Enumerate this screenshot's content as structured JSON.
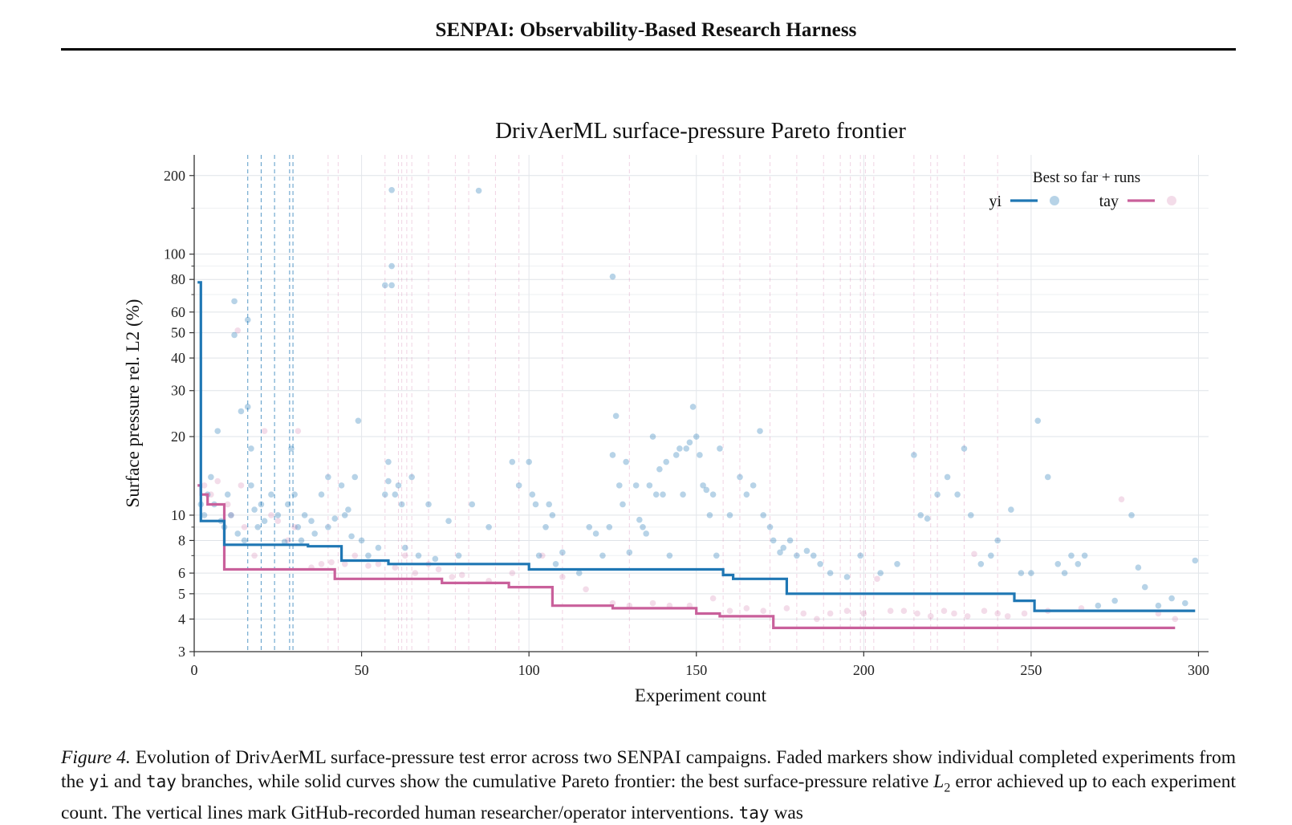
{
  "header": {
    "title": "SENPAI: Observability-Based Research Harness"
  },
  "chart_data": {
    "type": "line",
    "title": "DrivAerML surface-pressure Pareto frontier",
    "xlabel": "Experiment count",
    "ylabel": "Surface pressure rel. L2 (%)",
    "xlim": [
      0,
      303
    ],
    "ylim": [
      3,
      240
    ],
    "yscale": "log",
    "grid": true,
    "xticks": [
      0,
      50,
      100,
      150,
      200,
      250,
      300
    ],
    "xtick_labels": [
      "0",
      "50",
      "100",
      "150",
      "200",
      "250",
      "300"
    ],
    "yticks": [
      3,
      4,
      5,
      6,
      8,
      10,
      20,
      30,
      40,
      50,
      60,
      80,
      100,
      200
    ],
    "ytick_labels": [
      "3",
      "4",
      "5",
      "6",
      "8",
      "10",
      "20",
      "30",
      "40",
      "50",
      "60",
      "80",
      "100",
      "200"
    ],
    "legend": {
      "title": "Best so far + runs",
      "placement": "top-right",
      "entries": [
        "yi",
        "tay"
      ]
    },
    "series": [
      {
        "name": "yi",
        "color": "#1f77b4",
        "frontier": [
          [
            1,
            78
          ],
          [
            2,
            78
          ],
          [
            2,
            9.5
          ],
          [
            9,
            9.5
          ],
          [
            9,
            7.7
          ],
          [
            34,
            7.7
          ],
          [
            34,
            7.6
          ],
          [
            44,
            7.6
          ],
          [
            44,
            6.7
          ],
          [
            58,
            6.7
          ],
          [
            58,
            6.5
          ],
          [
            100,
            6.5
          ],
          [
            100,
            6.2
          ],
          [
            158,
            6.2
          ],
          [
            158,
            5.9
          ],
          [
            161,
            5.9
          ],
          [
            161,
            5.7
          ],
          [
            177,
            5.7
          ],
          [
            177,
            5.0
          ],
          [
            245,
            5.0
          ],
          [
            245,
            4.7
          ],
          [
            251,
            4.7
          ],
          [
            251,
            4.3
          ],
          [
            299,
            4.3
          ]
        ],
        "runs": [
          [
            2,
            11
          ],
          [
            3,
            10
          ],
          [
            4,
            12
          ],
          [
            5,
            14
          ],
          [
            6,
            11
          ],
          [
            7,
            21
          ],
          [
            8,
            9.5
          ],
          [
            9,
            9
          ],
          [
            10,
            12
          ],
          [
            11,
            10
          ],
          [
            12,
            66
          ],
          [
            12,
            49
          ],
          [
            13,
            8.5
          ],
          [
            14,
            25
          ],
          [
            15,
            8
          ],
          [
            16,
            56
          ],
          [
            16,
            26
          ],
          [
            17,
            18
          ],
          [
            17,
            13
          ],
          [
            18,
            10.5
          ],
          [
            19,
            9
          ],
          [
            20,
            11
          ],
          [
            21,
            9.5
          ],
          [
            23,
            12
          ],
          [
            25,
            10
          ],
          [
            27,
            7.9
          ],
          [
            28,
            11
          ],
          [
            29,
            18
          ],
          [
            30,
            12
          ],
          [
            31,
            9
          ],
          [
            32,
            8
          ],
          [
            33,
            10
          ],
          [
            35,
            9.5
          ],
          [
            36,
            8.5
          ],
          [
            38,
            12
          ],
          [
            40,
            9
          ],
          [
            40,
            14
          ],
          [
            42,
            9.7
          ],
          [
            44,
            13
          ],
          [
            45,
            10
          ],
          [
            46,
            10.5
          ],
          [
            47,
            8.3
          ],
          [
            48,
            14
          ],
          [
            49,
            23
          ],
          [
            50,
            8
          ],
          [
            52,
            7
          ],
          [
            55,
            7.5
          ],
          [
            57,
            76
          ],
          [
            57,
            12
          ],
          [
            58,
            16
          ],
          [
            58,
            13.5
          ],
          [
            59,
            176
          ],
          [
            59,
            90
          ],
          [
            59,
            76
          ],
          [
            60,
            12
          ],
          [
            61,
            13
          ],
          [
            62,
            11
          ],
          [
            63,
            7.5
          ],
          [
            65,
            14
          ],
          [
            67,
            7
          ],
          [
            70,
            11
          ],
          [
            72,
            6.8
          ],
          [
            76,
            9.5
          ],
          [
            79,
            7
          ],
          [
            83,
            11
          ],
          [
            85,
            175
          ],
          [
            88,
            9
          ],
          [
            95,
            16
          ],
          [
            97,
            13
          ],
          [
            100,
            16
          ],
          [
            101,
            12
          ],
          [
            102,
            11
          ],
          [
            103,
            7
          ],
          [
            105,
            9
          ],
          [
            106,
            11
          ],
          [
            107,
            10
          ],
          [
            108,
            6.5
          ],
          [
            110,
            7.2
          ],
          [
            115,
            6
          ],
          [
            118,
            9
          ],
          [
            120,
            8.5
          ],
          [
            122,
            7
          ],
          [
            124,
            9
          ],
          [
            125,
            82
          ],
          [
            125,
            17
          ],
          [
            126,
            24
          ],
          [
            127,
            13
          ],
          [
            128,
            11
          ],
          [
            129,
            16
          ],
          [
            130,
            7.2
          ],
          [
            132,
            13
          ],
          [
            133,
            9.6
          ],
          [
            134,
            9
          ],
          [
            135,
            8.5
          ],
          [
            136,
            13
          ],
          [
            137,
            20
          ],
          [
            138,
            12
          ],
          [
            139,
            15
          ],
          [
            140,
            12
          ],
          [
            141,
            16
          ],
          [
            142,
            7
          ],
          [
            144,
            17
          ],
          [
            145,
            18
          ],
          [
            146,
            12
          ],
          [
            147,
            18
          ],
          [
            148,
            19
          ],
          [
            149,
            26
          ],
          [
            150,
            20
          ],
          [
            151,
            17
          ],
          [
            152,
            13
          ],
          [
            153,
            12.5
          ],
          [
            154,
            10
          ],
          [
            155,
            12
          ],
          [
            156,
            7
          ],
          [
            157,
            18
          ],
          [
            160,
            10
          ],
          [
            163,
            14
          ],
          [
            165,
            12
          ],
          [
            167,
            13
          ],
          [
            169,
            21
          ],
          [
            170,
            10
          ],
          [
            172,
            9
          ],
          [
            173,
            8
          ],
          [
            175,
            7.2
          ],
          [
            176,
            7.5
          ],
          [
            178,
            8
          ],
          [
            180,
            7
          ],
          [
            183,
            7.3
          ],
          [
            185,
            7
          ],
          [
            187,
            6.5
          ],
          [
            190,
            6
          ],
          [
            195,
            5.8
          ],
          [
            199,
            7
          ],
          [
            205,
            6
          ],
          [
            210,
            6.5
          ],
          [
            215,
            17
          ],
          [
            217,
            10
          ],
          [
            219,
            9.7
          ],
          [
            222,
            12
          ],
          [
            225,
            14
          ],
          [
            228,
            12
          ],
          [
            230,
            18
          ],
          [
            232,
            10
          ],
          [
            235,
            6.5
          ],
          [
            238,
            7
          ],
          [
            240,
            8
          ],
          [
            244,
            10.5
          ],
          [
            247,
            6
          ],
          [
            250,
            6
          ],
          [
            252,
            23
          ],
          [
            255,
            14
          ],
          [
            258,
            6.5
          ],
          [
            260,
            6
          ],
          [
            262,
            7
          ],
          [
            264,
            6.5
          ],
          [
            266,
            7
          ],
          [
            270,
            4.5
          ],
          [
            275,
            4.7
          ],
          [
            280,
            10
          ],
          [
            282,
            6.3
          ],
          [
            284,
            5.3
          ],
          [
            288,
            4.5
          ],
          [
            292,
            4.8
          ],
          [
            296,
            4.6
          ],
          [
            299,
            6.7
          ]
        ]
      },
      {
        "name": "tay",
        "color": "#c9609b",
        "frontier": [
          [
            1,
            13
          ],
          [
            2,
            13
          ],
          [
            2,
            12
          ],
          [
            4,
            12
          ],
          [
            4,
            11
          ],
          [
            9,
            11
          ],
          [
            9,
            6.2
          ],
          [
            42,
            6.2
          ],
          [
            42,
            5.7
          ],
          [
            74,
            5.7
          ],
          [
            74,
            5.5
          ],
          [
            94,
            5.5
          ],
          [
            94,
            5.3
          ],
          [
            107,
            5.3
          ],
          [
            107,
            4.5
          ],
          [
            125,
            4.5
          ],
          [
            125,
            4.4
          ],
          [
            150,
            4.4
          ],
          [
            150,
            4.2
          ],
          [
            157,
            4.2
          ],
          [
            157,
            4.1
          ],
          [
            173,
            4.1
          ],
          [
            173,
            3.7
          ],
          [
            293,
            3.7
          ]
        ],
        "runs": [
          [
            3,
            13
          ],
          [
            5,
            12
          ],
          [
            7,
            13.5
          ],
          [
            10,
            11
          ],
          [
            11,
            10
          ],
          [
            13,
            51
          ],
          [
            14,
            13
          ],
          [
            15,
            9
          ],
          [
            18,
            7
          ],
          [
            21,
            21
          ],
          [
            23,
            10
          ],
          [
            25,
            9.5
          ],
          [
            28,
            8
          ],
          [
            30,
            9
          ],
          [
            31,
            21
          ],
          [
            35,
            6.3
          ],
          [
            38,
            6.5
          ],
          [
            41,
            6.6
          ],
          [
            45,
            6.5
          ],
          [
            48,
            7
          ],
          [
            52,
            6.4
          ],
          [
            55,
            6.5
          ],
          [
            60,
            6.3
          ],
          [
            63,
            7
          ],
          [
            66,
            6
          ],
          [
            70,
            6.5
          ],
          [
            73,
            6.2
          ],
          [
            77,
            5.8
          ],
          [
            80,
            5.9
          ],
          [
            88,
            5.6
          ],
          [
            95,
            6
          ],
          [
            104,
            7
          ],
          [
            110,
            5.8
          ],
          [
            117,
            5.2
          ],
          [
            125,
            4.6
          ],
          [
            130,
            4.5
          ],
          [
            137,
            4.6
          ],
          [
            142,
            4.5
          ],
          [
            148,
            4.5
          ],
          [
            155,
            4.8
          ],
          [
            160,
            4.3
          ],
          [
            165,
            4.4
          ],
          [
            170,
            4.3
          ],
          [
            177,
            4.4
          ],
          [
            182,
            4.2
          ],
          [
            186,
            4.0
          ],
          [
            190,
            4.2
          ],
          [
            195,
            4.3
          ],
          [
            200,
            4.2
          ],
          [
            204,
            5.7
          ],
          [
            208,
            4.3
          ],
          [
            212,
            4.3
          ],
          [
            216,
            4.2
          ],
          [
            220,
            4.1
          ],
          [
            224,
            4.3
          ],
          [
            227,
            4.2
          ],
          [
            231,
            4.1
          ],
          [
            233,
            7.1
          ],
          [
            236,
            4.3
          ],
          [
            240,
            4.2
          ],
          [
            243,
            4.1
          ],
          [
            248,
            4.2
          ],
          [
            255,
            4.3
          ],
          [
            265,
            4.4
          ],
          [
            277,
            11.5
          ],
          [
            288,
            4.2
          ],
          [
            293,
            4.0
          ]
        ]
      }
    ],
    "interventions": {
      "yi": [
        16,
        20,
        24,
        28.5,
        29.5
      ],
      "tay": [
        40,
        43,
        57,
        61,
        62,
        63.5,
        65,
        70,
        78,
        82,
        90,
        97,
        110,
        130,
        158,
        163,
        172,
        180,
        188,
        193,
        196,
        199,
        200.5,
        203,
        215,
        220,
        222,
        230,
        240
      ]
    }
  },
  "caption": {
    "label": "Figure 4.",
    "t1": " Evolution of DrivAerML surface-pressure test error across two SENPAI campaigns. Faded markers show individual completed experiments from the ",
    "yi": "yi",
    "t2": " and ",
    "tay": "tay",
    "t3": " branches, while solid curves show the cumulative Pareto frontier: the best surface-pressure relative ",
    "math_L": "L",
    "math_sub": "2",
    "t4": " error achieved up to each experiment count. The vertical lines mark GitHub-recorded human researcher/operator interventions. ",
    "tay2": "tay",
    "t5": " was"
  }
}
